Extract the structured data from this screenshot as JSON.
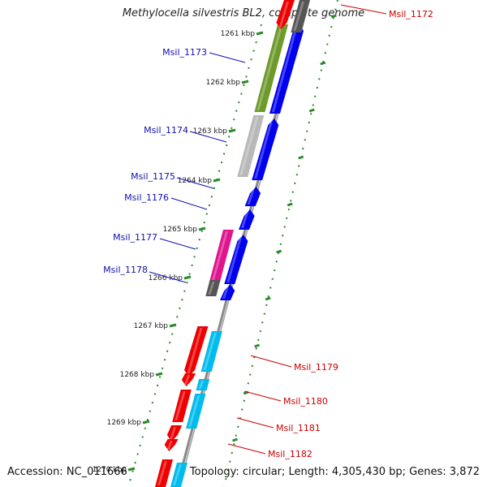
{
  "title": "Methylocella silvestris BL2, complete genome",
  "footer": {
    "accession": "Accession: NC_011666",
    "topology": "Topology: circular; Length: 4,305,430 bp; Genes: 3,872"
  },
  "colors": {
    "backbone": "#777777",
    "tick": "#2a8a2a",
    "label_blue": "#1010b0",
    "label_red": "#cc0000",
    "kbp_text": "#222222"
  },
  "kbp_ticks": [
    "1261 kbp",
    "1262 kbp",
    "1263 kbp",
    "1264 kbp",
    "1265 kbp",
    "1266 kbp",
    "1267 kbp",
    "1268 kbp",
    "1269 kbp",
    "1270 kbp"
  ],
  "gene_labels": [
    {
      "name": "Msil_1172",
      "color": "red"
    },
    {
      "name": "Msil_1173",
      "color": "blue"
    },
    {
      "name": "Msil_1174",
      "color": "blue"
    },
    {
      "name": "Msil_1175",
      "color": "blue"
    },
    {
      "name": "Msil_1176",
      "color": "blue"
    },
    {
      "name": "Msil_1177",
      "color": "blue"
    },
    {
      "name": "Msil_1178",
      "color": "blue"
    },
    {
      "name": "Msil_1179",
      "color": "red"
    },
    {
      "name": "Msil_1180",
      "color": "red"
    },
    {
      "name": "Msil_1181",
      "color": "red"
    },
    {
      "name": "Msil_1182",
      "color": "red"
    }
  ]
}
